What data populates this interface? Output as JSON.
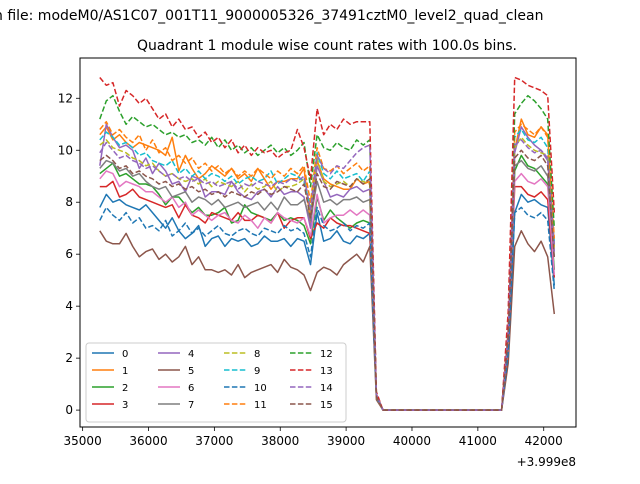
{
  "figure": {
    "suptitle": "n file: modeM0/AS1C07_001T11_9000005326_37491cztM0_level2_quad_clean",
    "title": "Quadrant 1 module wise count rates with 100.0s bins."
  },
  "chart_data": {
    "type": "line",
    "title": "Quadrant 1 module wise count rates with 100.0s bins.",
    "xlabel": "",
    "ylabel": "",
    "x_offset_label": "+3.999e8",
    "xlim": [
      34960,
      42490
    ],
    "ylim": [
      -0.65,
      13.55
    ],
    "x_ticks": [
      35000,
      36000,
      37000,
      38000,
      39000,
      40000,
      41000,
      42000
    ],
    "x_tick_labels": [
      "35000",
      "36000",
      "37000",
      "38000",
      "39000",
      "40000",
      "41000",
      "42000"
    ],
    "y_ticks": [
      0,
      2,
      4,
      6,
      8,
      10,
      12
    ],
    "y_tick_labels": [
      "0",
      "2",
      "4",
      "6",
      "8",
      "10",
      "12"
    ],
    "grid": false,
    "legend_placement": "lower-left",
    "legend_columns": 4,
    "x": [
      35260,
      35360,
      35460,
      35560,
      35660,
      35760,
      35860,
      35960,
      36060,
      36160,
      36260,
      36360,
      36460,
      36560,
      36660,
      36760,
      36860,
      36960,
      37060,
      37160,
      37260,
      37360,
      37460,
      37560,
      37660,
      37760,
      37860,
      37960,
      38060,
      38160,
      38260,
      38360,
      38460,
      38560,
      38660,
      38760,
      38860,
      38960,
      39060,
      39160,
      39260,
      39360,
      39460,
      39560,
      40960,
      41060,
      41160,
      41260,
      41360,
      41460,
      41560,
      41660,
      41760,
      41860,
      41960,
      42060,
      42160
    ],
    "series": [
      {
        "name": "0",
        "color": "#1f77b4",
        "dash": "solid",
        "values": [
          7.8,
          8.3,
          8.0,
          8.1,
          7.9,
          7.8,
          7.7,
          7.9,
          7.6,
          7.3,
          7.0,
          7.4,
          6.9,
          6.6,
          6.8,
          7.1,
          6.3,
          6.6,
          6.7,
          6.3,
          6.6,
          6.5,
          6.6,
          6.3,
          6.4,
          6.7,
          6.5,
          6.5,
          6.6,
          6.3,
          6.6,
          6.5,
          5.6,
          7.6,
          6.5,
          6.6,
          6.9,
          6.5,
          6.4,
          6.7,
          6.6,
          6.8,
          0.6,
          0.0,
          0.0,
          0.0,
          0.0,
          0.0,
          0.0,
          2.2,
          7.6,
          8.3,
          8.0,
          8.1,
          7.9,
          7.8,
          4.8
        ]
      },
      {
        "name": "1",
        "color": "#ff7f0e",
        "dash": "solid",
        "values": [
          10.6,
          10.9,
          10.4,
          10.6,
          10.3,
          10.1,
          10.3,
          10.2,
          10.1,
          10.0,
          9.8,
          10.5,
          9.2,
          9.8,
          9.3,
          8.9,
          9.1,
          9.4,
          9.2,
          9.0,
          9.3,
          8.9,
          9.1,
          8.8,
          9.3,
          8.9,
          8.5,
          8.8,
          8.8,
          8.9,
          8.9,
          9.3,
          7.2,
          9.6,
          8.9,
          8.7,
          8.6,
          8.5,
          8.5,
          8.9,
          8.7,
          8.8,
          0.5,
          0.0,
          0.0,
          0.0,
          0.0,
          0.0,
          0.0,
          3.0,
          10.0,
          11.2,
          10.6,
          10.5,
          10.9,
          10.6,
          6.3
        ]
      },
      {
        "name": "2",
        "color": "#2ca02c",
        "dash": "solid",
        "values": [
          9.1,
          9.3,
          9.5,
          9.0,
          9.1,
          8.9,
          8.7,
          8.7,
          8.6,
          8.3,
          7.9,
          8.2,
          8.2,
          7.9,
          7.6,
          7.8,
          7.5,
          7.5,
          7.6,
          7.8,
          7.2,
          7.3,
          7.9,
          7.6,
          7.5,
          7.4,
          7.3,
          7.6,
          7.3,
          7.4,
          7.3,
          7.1,
          6.4,
          8.2,
          7.3,
          7.7,
          7.4,
          7.2,
          7.0,
          7.2,
          7.3,
          7.2,
          0.6,
          0.0,
          0.0,
          0.0,
          0.0,
          0.0,
          0.0,
          2.5,
          9.2,
          9.8,
          9.4,
          9.3,
          9.0,
          8.7,
          5.4
        ]
      },
      {
        "name": "3",
        "color": "#d62728",
        "dash": "solid",
        "values": [
          8.6,
          8.6,
          8.8,
          8.2,
          8.3,
          8.5,
          8.2,
          8.1,
          8.0,
          7.9,
          7.8,
          7.9,
          7.4,
          7.9,
          7.5,
          7.4,
          7.2,
          7.6,
          7.5,
          7.4,
          7.3,
          7.6,
          7.3,
          7.3,
          7.5,
          7.4,
          7.2,
          7.6,
          7.0,
          7.3,
          7.4,
          7.4,
          6.6,
          7.2,
          7.0,
          7.4,
          7.2,
          7.1,
          7.1,
          7.0,
          6.9,
          6.8,
          0.6,
          0.0,
          0.0,
          0.0,
          0.0,
          0.0,
          0.0,
          2.3,
          8.6,
          8.6,
          8.3,
          8.2,
          8.4,
          8.1,
          5.1
        ]
      },
      {
        "name": "4",
        "color": "#9467bd",
        "dash": "solid",
        "values": [
          9.4,
          11.0,
          10.5,
          10.1,
          10.2,
          10.0,
          9.3,
          9.7,
          9.1,
          9.5,
          9.2,
          8.7,
          8.8,
          8.4,
          9.0,
          8.9,
          8.2,
          8.4,
          8.4,
          8.3,
          8.8,
          8.4,
          8.2,
          8.1,
          8.4,
          8.5,
          8.2,
          8.6,
          8.3,
          8.4,
          8.4,
          8.2,
          7.0,
          9.4,
          8.8,
          8.2,
          8.3,
          8.2,
          8.5,
          8.6,
          8.4,
          8.5,
          0.5,
          0.0,
          0.0,
          0.0,
          0.0,
          0.0,
          0.0,
          2.9,
          9.9,
          10.9,
          10.5,
          10.2,
          10.0,
          9.6,
          6.4
        ]
      },
      {
        "name": "5",
        "color": "#8c564b",
        "dash": "solid",
        "values": [
          6.9,
          6.5,
          6.4,
          6.4,
          6.8,
          6.3,
          5.9,
          6.1,
          6.2,
          5.8,
          6.0,
          5.7,
          5.9,
          6.3,
          5.6,
          5.9,
          5.4,
          5.4,
          5.3,
          5.4,
          5.2,
          5.6,
          5.1,
          5.3,
          5.4,
          5.5,
          5.6,
          5.3,
          5.8,
          5.5,
          5.4,
          5.2,
          4.6,
          5.3,
          5.5,
          5.4,
          5.2,
          5.6,
          5.8,
          6.0,
          5.7,
          6.3,
          0.4,
          0.0,
          0.0,
          0.0,
          0.0,
          0.0,
          0.0,
          1.8,
          6.3,
          6.9,
          6.4,
          6.1,
          6.5,
          5.9,
          3.7
        ]
      },
      {
        "name": "6",
        "color": "#e377c2",
        "dash": "solid",
        "values": [
          8.9,
          9.2,
          9.1,
          8.6,
          8.8,
          8.7,
          8.6,
          8.4,
          8.4,
          8.2,
          8.0,
          8.2,
          7.8,
          8.0,
          7.5,
          7.7,
          7.5,
          7.3,
          7.5,
          7.6,
          7.3,
          7.2,
          7.5,
          7.3,
          7.0,
          7.4,
          7.2,
          7.6,
          7.4,
          7.3,
          7.2,
          7.4,
          6.7,
          8.3,
          7.2,
          7.4,
          7.5,
          7.5,
          7.7,
          7.5,
          7.7,
          7.5,
          0.5,
          0.0,
          0.0,
          0.0,
          0.0,
          0.0,
          0.0,
          2.5,
          8.8,
          9.1,
          8.8,
          8.7,
          8.9,
          8.6,
          5.2
        ]
      },
      {
        "name": "7",
        "color": "#7f7f7f",
        "dash": "solid",
        "values": [
          9.3,
          9.6,
          9.5,
          9.2,
          9.3,
          9.0,
          9.1,
          8.8,
          8.6,
          8.5,
          8.6,
          8.2,
          8.3,
          8.4,
          8.0,
          8.2,
          8.1,
          7.9,
          8.1,
          7.8,
          7.9,
          8.0,
          7.8,
          7.9,
          8.0,
          7.7,
          8.0,
          7.7,
          8.2,
          7.9,
          7.9,
          8.1,
          7.3,
          8.8,
          8.0,
          8.1,
          7.9,
          8.1,
          8.1,
          8.2,
          8.0,
          8.1,
          0.5,
          0.0,
          0.0,
          0.0,
          0.0,
          0.0,
          0.0,
          2.7,
          9.4,
          9.6,
          9.3,
          9.2,
          9.4,
          9.0,
          5.9
        ]
      },
      {
        "name": "8",
        "color": "#bcbd22",
        "dash": "dashed",
        "values": [
          10.2,
          10.4,
          10.1,
          10.0,
          9.9,
          9.7,
          9.6,
          9.4,
          9.5,
          9.2,
          9.0,
          9.1,
          8.9,
          8.8,
          8.9,
          8.7,
          8.9,
          8.6,
          8.8,
          8.7,
          8.6,
          8.8,
          8.4,
          8.7,
          8.5,
          8.6,
          8.8,
          8.4,
          8.6,
          8.6,
          8.7,
          8.9,
          7.6,
          9.7,
          8.8,
          8.6,
          8.7,
          8.8,
          8.6,
          8.9,
          8.8,
          8.7,
          0.5,
          0.0,
          0.0,
          0.0,
          0.0,
          0.0,
          0.0,
          2.9,
          10.1,
          10.5,
          10.2,
          10.0,
          9.9,
          9.8,
          6.2
        ]
      },
      {
        "name": "9",
        "color": "#17becf",
        "dash": "dashed",
        "values": [
          10.4,
          10.7,
          10.5,
          10.2,
          10.3,
          10.1,
          9.8,
          9.9,
          9.6,
          9.5,
          9.4,
          9.6,
          9.1,
          9.3,
          9.0,
          9.2,
          8.9,
          9.1,
          9.0,
          8.8,
          9.0,
          8.7,
          8.9,
          9.0,
          8.8,
          8.9,
          9.2,
          8.7,
          8.9,
          9.1,
          9.0,
          8.8,
          7.8,
          9.9,
          9.1,
          8.9,
          9.2,
          8.9,
          9.0,
          9.1,
          8.8,
          9.2,
          0.5,
          0.0,
          0.0,
          0.0,
          0.0,
          0.0,
          0.0,
          3.0,
          10.5,
          10.8,
          10.4,
          10.3,
          10.5,
          10.1,
          6.4
        ]
      },
      {
        "name": "10",
        "color": "#1f77b4",
        "dash": "dashed",
        "values": [
          7.3,
          7.8,
          7.5,
          7.3,
          7.6,
          7.2,
          7.4,
          7.0,
          7.1,
          6.9,
          7.3,
          6.7,
          6.9,
          7.2,
          6.8,
          7.0,
          6.7,
          6.9,
          7.1,
          6.8,
          6.7,
          6.9,
          7.0,
          6.8,
          6.7,
          7.0,
          6.9,
          6.8,
          7.1,
          6.9,
          7.0,
          6.8,
          5.9,
          7.8,
          7.1,
          6.9,
          7.0,
          7.2,
          6.9,
          7.1,
          7.0,
          7.2,
          0.5,
          0.0,
          0.0,
          0.0,
          0.0,
          0.0,
          0.0,
          2.2,
          7.6,
          7.8,
          7.5,
          7.4,
          7.6,
          7.3,
          4.6
        ]
      },
      {
        "name": "11",
        "color": "#ff7f0e",
        "dash": "dashed",
        "values": [
          10.8,
          11.1,
          10.6,
          10.8,
          10.5,
          10.3,
          10.6,
          10.0,
          10.4,
          9.9,
          10.1,
          9.6,
          9.8,
          9.5,
          9.7,
          9.3,
          9.5,
          9.2,
          9.4,
          9.1,
          9.3,
          9.0,
          9.2,
          9.0,
          9.3,
          9.1,
          8.9,
          9.2,
          9.0,
          9.3,
          9.1,
          9.4,
          8.0,
          10.1,
          9.3,
          9.2,
          9.4,
          9.1,
          9.3,
          9.5,
          9.2,
          9.4,
          0.5,
          0.0,
          0.0,
          0.0,
          0.0,
          0.0,
          0.0,
          3.1,
          10.7,
          11.0,
          10.8,
          10.6,
          10.9,
          10.5,
          6.6
        ]
      },
      {
        "name": "12",
        "color": "#2ca02c",
        "dash": "dashed",
        "values": [
          11.2,
          11.9,
          12.1,
          11.5,
          11.0,
          11.3,
          11.1,
          10.9,
          11.0,
          10.8,
          10.6,
          10.7,
          10.5,
          10.6,
          10.3,
          10.4,
          10.2,
          10.5,
          10.1,
          10.4,
          10.0,
          10.2,
          9.9,
          10.1,
          9.8,
          10.0,
          10.2,
          9.9,
          10.1,
          9.8,
          10.0,
          10.3,
          8.6,
          10.6,
          10.1,
          10.0,
          10.3,
          10.1,
          10.0,
          10.4,
          10.2,
          10.4,
          0.6,
          0.0,
          0.0,
          0.0,
          0.0,
          0.0,
          0.0,
          3.3,
          11.4,
          11.8,
          12.1,
          11.9,
          11.6,
          11.2,
          7.0
        ]
      },
      {
        "name": "13",
        "color": "#d62728",
        "dash": "dashed",
        "values": [
          12.8,
          12.5,
          12.6,
          11.7,
          12.3,
          12.1,
          11.8,
          12.0,
          11.6,
          11.2,
          11.4,
          10.9,
          11.2,
          10.8,
          10.9,
          10.5,
          10.7,
          10.3,
          10.5,
          10.1,
          10.4,
          9.9,
          10.2,
          9.8,
          10.1,
          9.9,
          10.0,
          9.7,
          9.9,
          10.0,
          10.8,
          10.1,
          8.9,
          11.6,
          10.6,
          11.0,
          10.8,
          11.2,
          11.0,
          11.1,
          11.1,
          11.1,
          0.7,
          0.0,
          0.0,
          0.0,
          0.0,
          0.0,
          0.0,
          3.8,
          12.8,
          12.7,
          12.5,
          12.4,
          12.3,
          12.1,
          7.6
        ]
      },
      {
        "name": "14",
        "color": "#9467bd",
        "dash": "dashed",
        "values": [
          9.9,
          10.3,
          10.0,
          9.7,
          9.8,
          9.6,
          9.5,
          9.3,
          9.4,
          9.2,
          9.0,
          9.1,
          8.9,
          9.0,
          8.8,
          8.9,
          8.7,
          8.8,
          8.6,
          8.7,
          8.8,
          8.5,
          8.7,
          8.6,
          8.8,
          8.7,
          8.6,
          8.8,
          8.7,
          8.9,
          8.8,
          9.0,
          7.7,
          9.8,
          9.3,
          9.1,
          9.4,
          9.3,
          9.6,
          9.9,
          10.1,
          10.2,
          0.6,
          0.0,
          0.0,
          0.0,
          0.0,
          0.0,
          0.0,
          3.0,
          10.2,
          10.4,
          10.1,
          9.9,
          10.0,
          9.7,
          6.1
        ]
      },
      {
        "name": "15",
        "color": "#8c564b",
        "dash": "dashed",
        "values": [
          9.6,
          9.8,
          9.6,
          9.3,
          9.4,
          9.1,
          9.2,
          9.0,
          8.9,
          8.7,
          8.8,
          8.6,
          8.7,
          8.5,
          8.6,
          8.4,
          8.5,
          8.3,
          8.4,
          8.2,
          8.4,
          8.3,
          8.2,
          8.4,
          8.3,
          8.5,
          8.3,
          8.4,
          8.6,
          8.5,
          8.4,
          8.7,
          7.4,
          9.1,
          8.6,
          8.5,
          8.8,
          8.7,
          8.6,
          8.9,
          8.7,
          8.9,
          0.5,
          0.0,
          0.0,
          0.0,
          0.0,
          0.0,
          0.0,
          2.8,
          9.7,
          10.0,
          9.7,
          9.6,
          9.8,
          9.4,
          5.8
        ]
      }
    ]
  }
}
